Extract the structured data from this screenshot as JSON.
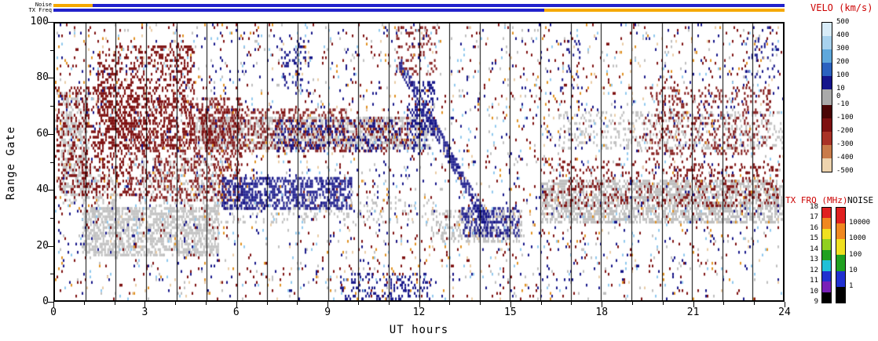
{
  "chart_data": {
    "type": "heatmap",
    "description": "SuperDARN-style radar range-time velocity summary plot with scattered echoes",
    "xlabel": "UT hours",
    "ylabel": "Range Gate",
    "xlim": [
      0,
      24
    ],
    "ylim": [
      0,
      101
    ],
    "xticks": [
      0,
      3,
      6,
      9,
      12,
      15,
      18,
      21,
      24
    ],
    "yticks": [
      0,
      20,
      40,
      60,
      80,
      100
    ],
    "vertical_gridline_every_hour": true,
    "top_strips": {
      "noise_label": "Noise",
      "tx_freq_label": "TX Freq",
      "noise_segments": [
        {
          "x0": 0,
          "x1": 1.3,
          "color": "#F5A800"
        },
        {
          "x0": 1.3,
          "x1": 24,
          "color": "#2121CC"
        }
      ],
      "tx_freq_segments": [
        {
          "x0": 0,
          "x1": 16.1,
          "color": "#2121CC"
        },
        {
          "x0": 16.1,
          "x1": 24,
          "color": "#F5A800"
        }
      ]
    },
    "colorbars": {
      "velocity": {
        "title": "VELO (km/s)",
        "labels": [
          "500",
          "400",
          "300",
          "200",
          "100",
          "10",
          "-10",
          "-100",
          "-200",
          "-300",
          "-400",
          "-500"
        ],
        "zero_label": "0",
        "segments": [
          {
            "color": "#D8ECF8",
            "h": 17
          },
          {
            "color": "#A8D2EE",
            "h": 17
          },
          {
            "color": "#5FA8DC",
            "h": 17
          },
          {
            "color": "#2B62C0",
            "h": 17
          },
          {
            "color": "#15158C",
            "h": 17
          },
          {
            "color": "#AAAAAA",
            "h": 20
          },
          {
            "color": "#4A0505",
            "h": 17
          },
          {
            "color": "#7E1010",
            "h": 17
          },
          {
            "color": "#A93226",
            "h": 17
          },
          {
            "color": "#C97B4A",
            "h": 17
          },
          {
            "color": "#EDD3AE",
            "h": 17
          }
        ]
      },
      "tx_freq": {
        "title": "TX FRQ (MHz)",
        "labels": [
          "18",
          "17",
          "16",
          "15",
          "14",
          "13",
          "12",
          "11",
          "10",
          "9"
        ],
        "colors": [
          "#E02020",
          "#F08820",
          "#F0E020",
          "#90D020",
          "#20A020",
          "#20C0D8",
          "#2030D0",
          "#7820B8",
          "#000000"
        ]
      },
      "noise": {
        "title": "NOISE",
        "labels": [
          "10000",
          "1000",
          "100",
          "10",
          "1"
        ],
        "colors": [
          "#E02020",
          "#F08820",
          "#F0E020",
          "#20A020",
          "#2030D0",
          "#000000"
        ]
      }
    },
    "features": [
      {
        "kind": "band",
        "x0": 0.2,
        "x1": 1.15,
        "g0": 35,
        "g1": 76,
        "color": "#BFBFBF",
        "density": 0.45
      },
      {
        "kind": "band",
        "x0": 0.9,
        "x1": 5.4,
        "g0": 16,
        "g1": 34,
        "color": "#BFBFBF",
        "density": 0.6
      },
      {
        "kind": "band",
        "x0": 1.1,
        "x1": 2.1,
        "g0": 30,
        "g1": 46,
        "color": "#BFBFBF",
        "density": 0.28
      },
      {
        "kind": "band",
        "x0": 2.8,
        "x1": 5.6,
        "g0": 34,
        "g1": 52,
        "color": "#BFBFBF",
        "density": 0.22
      },
      {
        "kind": "band",
        "x0": 4.6,
        "x1": 12.4,
        "g0": 55,
        "g1": 67,
        "color": "#BFBFBF",
        "density": 0.5
      },
      {
        "kind": "band",
        "x0": 5.2,
        "x1": 12.6,
        "g0": 28,
        "g1": 38,
        "color": "#BFBFBF",
        "density": 0.13
      },
      {
        "kind": "band",
        "x0": 12.4,
        "x1": 15.4,
        "g0": 21,
        "g1": 33,
        "color": "#BFBFBF",
        "density": 0.4
      },
      {
        "kind": "band",
        "x0": 16.0,
        "x1": 24,
        "g0": 28,
        "g1": 44,
        "color": "#BFBFBF",
        "density": 0.6
      },
      {
        "kind": "band",
        "x0": 16.6,
        "x1": 24,
        "g0": 55,
        "g1": 69,
        "color": "#BFBFBF",
        "density": 0.2
      },
      {
        "kind": "band",
        "x0": 0,
        "x1": 24,
        "g0": 0,
        "g1": 101,
        "color": "#BFBFBF",
        "density": 0.012
      },
      {
        "kind": "band",
        "x0": 0.05,
        "x1": 2.6,
        "g0": 38,
        "g1": 78,
        "color": "#7E1010",
        "density": 0.28
      },
      {
        "kind": "band",
        "x0": 1.4,
        "x1": 4.6,
        "g0": 55,
        "g1": 93,
        "color": "#7E1010",
        "density": 0.3
      },
      {
        "kind": "band",
        "x0": 2.4,
        "x1": 6.2,
        "g0": 36,
        "g1": 74,
        "color": "#7E1010",
        "density": 0.26
      },
      {
        "kind": "band",
        "x0": 4.8,
        "x1": 9.6,
        "g0": 54,
        "g1": 70,
        "color": "#7E1010",
        "density": 0.3
      },
      {
        "kind": "band",
        "x0": 9.6,
        "x1": 11.8,
        "g0": 54,
        "g1": 67,
        "color": "#7E1010",
        "density": 0.18
      },
      {
        "kind": "band",
        "x0": 11.2,
        "x1": 12.6,
        "g0": 82,
        "g1": 100,
        "color": "#7E1010",
        "density": 0.15
      },
      {
        "kind": "band",
        "x0": 16.1,
        "x1": 21.0,
        "g0": 34,
        "g1": 52,
        "color": "#7E1010",
        "density": 0.15
      },
      {
        "kind": "band",
        "x0": 19.4,
        "x1": 23.6,
        "g0": 53,
        "g1": 78,
        "color": "#7E1010",
        "density": 0.17
      },
      {
        "kind": "band",
        "x0": 21.0,
        "x1": 23.9,
        "g0": 34,
        "g1": 50,
        "color": "#7E1010",
        "density": 0.2
      },
      {
        "kind": "band",
        "x0": 0,
        "x1": 24,
        "g0": 0,
        "g1": 101,
        "color": "#7E1010",
        "density": 0.02
      },
      {
        "kind": "band",
        "x0": 5.5,
        "x1": 9.8,
        "g0": 33,
        "g1": 45,
        "color": "#141488",
        "density": 0.5
      },
      {
        "kind": "band",
        "x0": 7.2,
        "x1": 12.4,
        "g0": 54,
        "g1": 66,
        "color": "#141488",
        "density": 0.2
      },
      {
        "kind": "streak",
        "x0": 11.35,
        "g0": 86,
        "x1": 14.3,
        "g1": 26,
        "w": 6,
        "color": "#141488",
        "density": 0.6
      },
      {
        "kind": "band",
        "x0": 11.6,
        "x1": 12.6,
        "g0": 60,
        "g1": 80,
        "color": "#141488",
        "density": 0.3
      },
      {
        "kind": "band",
        "x0": 13.4,
        "x1": 15.3,
        "g0": 23,
        "g1": 34,
        "color": "#141488",
        "density": 0.4
      },
      {
        "kind": "band",
        "x0": 9.4,
        "x1": 12.4,
        "g0": 0,
        "g1": 10,
        "color": "#141488",
        "density": 0.2
      },
      {
        "kind": "band",
        "x0": 7.4,
        "x1": 8.4,
        "g0": 76,
        "g1": 96,
        "color": "#141488",
        "density": 0.15
      },
      {
        "kind": "band",
        "x0": 16.6,
        "x1": 17.3,
        "g0": 74,
        "g1": 95,
        "color": "#141488",
        "density": 0.1
      },
      {
        "kind": "band",
        "x0": 22.7,
        "x1": 23.8,
        "g0": 80,
        "g1": 100,
        "color": "#141488",
        "density": 0.08
      },
      {
        "kind": "band",
        "x0": 0,
        "x1": 24,
        "g0": 0,
        "g1": 101,
        "color": "#141488",
        "density": 0.015
      },
      {
        "kind": "band",
        "x0": 0,
        "x1": 24,
        "g0": 0,
        "g1": 101,
        "color": "#8FC8EE",
        "density": 0.01
      },
      {
        "kind": "band",
        "x0": 0,
        "x1": 24,
        "g0": 0,
        "g1": 101,
        "color": "#E09020",
        "density": 0.007
      },
      {
        "kind": "band",
        "x0": 0,
        "x1": 24,
        "g0": 0,
        "g1": 101,
        "color": "#E9CBA4",
        "density": 0.006
      }
    ]
  }
}
